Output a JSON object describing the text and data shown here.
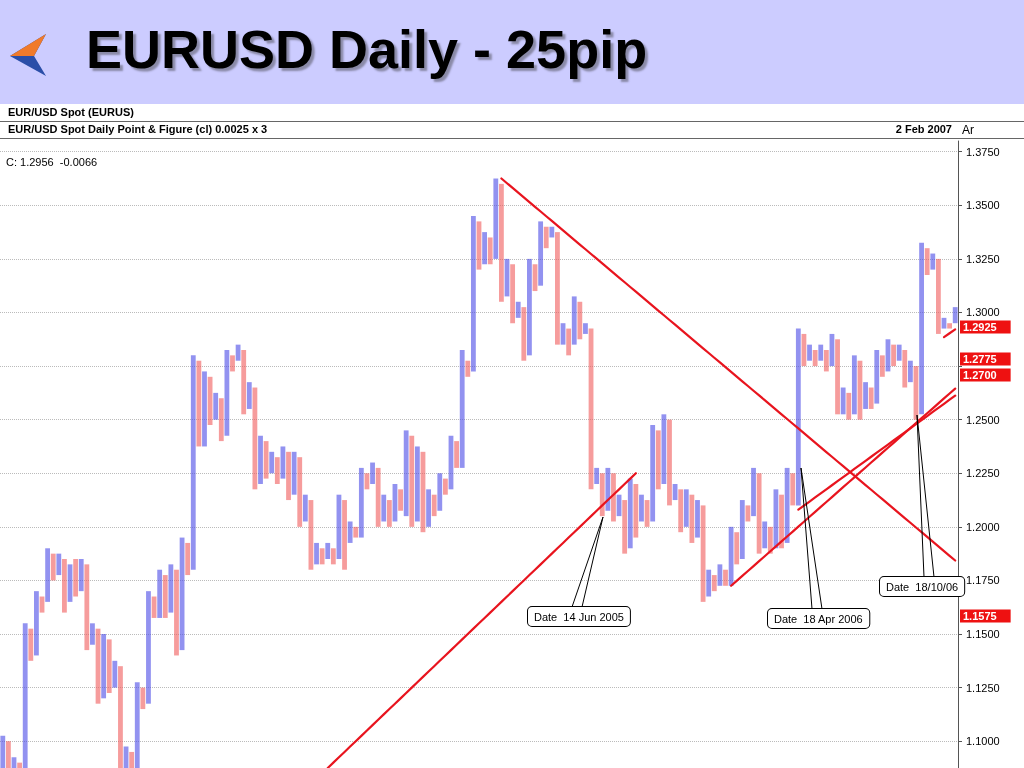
{
  "chart_data": {
    "type": "bar",
    "title": "EURUSD Daily - 25pip",
    "subtitle": "EUR/USD Spot Daily Point & Figure (cl) 0.0025 x 3",
    "categories": [
      null,
      null,
      null,
      null,
      null,
      null,
      null,
      null,
      null,
      null,
      null,
      null,
      null,
      null,
      null,
      null,
      null,
      null,
      null,
      null,
      null,
      null,
      null,
      null,
      null,
      null,
      null,
      null,
      null,
      null,
      null,
      null,
      null,
      null,
      null,
      null,
      null,
      null,
      null,
      null,
      null,
      null,
      null,
      null,
      null,
      null,
      null,
      null,
      null,
      null,
      null,
      null,
      null,
      null,
      null,
      null,
      null,
      null,
      null,
      null,
      null,
      null,
      null,
      null,
      null,
      null,
      null,
      null,
      null,
      null,
      null,
      null,
      null,
      null,
      null,
      null,
      null,
      null,
      null,
      null,
      null,
      null,
      null,
      null,
      null,
      null,
      null,
      null,
      null,
      null,
      null,
      null,
      null,
      null,
      null,
      null,
      null,
      null,
      null,
      null,
      null,
      null,
      null,
      null,
      null,
      null,
      null,
      null,
      null,
      null,
      null,
      null,
      null,
      null,
      null,
      null,
      null,
      null,
      null,
      null,
      null,
      null,
      null,
      null,
      null,
      null,
      null,
      null,
      null,
      null,
      null,
      null,
      null,
      null,
      null,
      null,
      null,
      null,
      null,
      null,
      null,
      null,
      null,
      null,
      null,
      null,
      null,
      null,
      null,
      null,
      null,
      null,
      null,
      null,
      null,
      null,
      null,
      null,
      null,
      null,
      null,
      null,
      null,
      null,
      null,
      null,
      null,
      null,
      null,
      null,
      null
    ],
    "base": [
      1.0875,
      1.0875,
      1.0875,
      1.0875,
      1.0875,
      1.1375,
      1.14,
      1.16,
      1.165,
      1.175,
      1.1775,
      1.16,
      1.165,
      1.1675,
      1.17,
      1.1425,
      1.145,
      1.1175,
      1.12,
      1.1225,
      1.125,
      1.0875,
      1.0875,
      1.0875,
      1.0875,
      1.115,
      1.1175,
      1.1575,
      1.1575,
      1.1575,
      1.16,
      1.14,
      1.1425,
      1.1775,
      1.18,
      1.2375,
      1.2375,
      1.2475,
      1.25,
      1.24,
      1.2425,
      1.2725,
      1.2775,
      1.2525,
      1.255,
      1.2175,
      1.22,
      1.2225,
      1.225,
      1.22,
      1.2225,
      1.2125,
      1.215,
      1.2,
      1.2025,
      1.18,
      1.1825,
      1.1825,
      1.185,
      1.1825,
      1.185,
      1.18,
      1.1925,
      1.195,
      1.195,
      1.2175,
      1.22,
      1.2,
      1.2025,
      1.2,
      1.2025,
      1.2075,
      1.205,
      1.2,
      1.2025,
      1.1975,
      1.2,
      1.205,
      1.2075,
      1.215,
      1.2175,
      1.2275,
      1.2275,
      1.27,
      1.2725,
      1.32,
      1.3225,
      1.3225,
      1.325,
      1.305,
      1.3075,
      1.295,
      1.2975,
      1.2775,
      1.28,
      1.31,
      1.3125,
      1.33,
      1.335,
      1.285,
      1.285,
      1.28,
      1.285,
      1.2875,
      1.29,
      1.2175,
      1.22,
      1.205,
      1.2075,
      1.2025,
      1.205,
      1.1875,
      1.19,
      1.195,
      1.2025,
      1.2,
      1.2025,
      1.2175,
      1.22,
      1.21,
      1.2125,
      1.1975,
      1.2,
      1.1925,
      1.195,
      1.165,
      1.1675,
      1.17,
      1.1725,
      1.1725,
      1.1725,
      1.1825,
      1.185,
      1.2025,
      1.205,
      1.1875,
      1.19,
      1.1875,
      1.19,
      1.19,
      1.1925,
      1.21,
      1.21,
      1.275,
      1.2775,
      1.275,
      1.2775,
      1.2725,
      1.275,
      1.2525,
      1.2525,
      1.25,
      1.2525,
      1.25,
      1.255,
      1.255,
      1.2575,
      1.27,
      1.2725,
      1.275,
      1.2775,
      1.265,
      1.2675,
      1.25,
      1.2525,
      1.3175,
      1.32,
      1.29,
      1.2925,
      1.2925,
      1.295
    ],
    "values": [
      0.015,
      0.0125,
      0.005,
      0.0025,
      0.0675,
      0.015,
      0.03,
      0.0075,
      0.025,
      0.0125,
      0.01,
      0.025,
      0.0175,
      0.0175,
      0.015,
      0.04,
      0.01,
      0.035,
      0.03,
      0.025,
      0.0125,
      0.0475,
      0.01,
      0.0075,
      0.04,
      0.01,
      0.0525,
      0.01,
      0.0225,
      0.02,
      0.0225,
      0.04,
      0.0525,
      0.015,
      0.1,
      0.04,
      0.035,
      0.0225,
      0.0125,
      0.02,
      0.04,
      0.0075,
      0.0075,
      0.03,
      0.0125,
      0.0475,
      0.0225,
      0.0175,
      0.01,
      0.0125,
      0.015,
      0.0225,
      0.02,
      0.0325,
      0.0125,
      0.0325,
      0.01,
      0.0075,
      0.0075,
      0.0075,
      0.03,
      0.0325,
      0.01,
      0.005,
      0.0325,
      0.0075,
      0.01,
      0.0275,
      0.0125,
      0.0125,
      0.0175,
      0.01,
      0.04,
      0.0425,
      0.035,
      0.0375,
      0.0175,
      0.01,
      0.0175,
      0.0075,
      0.025,
      0.0125,
      0.055,
      0.0075,
      0.0725,
      0.0225,
      0.015,
      0.0125,
      0.0375,
      0.055,
      0.0175,
      0.0275,
      0.0075,
      0.025,
      0.045,
      0.0125,
      0.03,
      0.01,
      0.005,
      0.0525,
      0.01,
      0.0125,
      0.0225,
      0.0175,
      0.005,
      0.075,
      0.0075,
      0.02,
      0.02,
      0.0225,
      0.01,
      0.025,
      0.0325,
      0.025,
      0.0125,
      0.0125,
      0.045,
      0.0275,
      0.0325,
      0.04,
      0.0075,
      0.02,
      0.0175,
      0.0225,
      0.0175,
      0.045,
      0.0125,
      0.0075,
      0.01,
      0.0075,
      0.0275,
      0.015,
      0.0275,
      0.0075,
      0.0225,
      0.0375,
      0.0125,
      0.0125,
      0.0275,
      0.025,
      0.035,
      0.015,
      0.0825,
      0.015,
      0.0075,
      0.0075,
      0.0075,
      0.01,
      0.015,
      0.035,
      0.0125,
      0.0125,
      0.0275,
      0.0275,
      0.0125,
      0.01,
      0.025,
      0.01,
      0.015,
      0.01,
      0.0075,
      0.0175,
      0.01,
      0.025,
      0.08,
      0.0125,
      0.0075,
      0.035,
      0.005,
      0.0025,
      0.0075
    ],
    "colors": [
      "#4a4ae6",
      "#f05a5a",
      "#4a4ae6",
      "#f05a5a",
      "#4a4ae6",
      "#f05a5a",
      "#4a4ae6",
      "#f05a5a",
      "#4a4ae6",
      "#f05a5a",
      "#4a4ae6",
      "#f05a5a",
      "#4a4ae6",
      "#f05a5a",
      "#4a4ae6",
      "#f05a5a",
      "#4a4ae6",
      "#f05a5a",
      "#4a4ae6",
      "#f05a5a",
      "#4a4ae6",
      "#f05a5a",
      "#4a4ae6",
      "#f05a5a",
      "#4a4ae6",
      "#f05a5a",
      "#4a4ae6",
      "#f05a5a",
      "#4a4ae6",
      "#f05a5a",
      "#4a4ae6",
      "#f05a5a",
      "#4a4ae6",
      "#f05a5a",
      "#4a4ae6",
      "#f05a5a",
      "#4a4ae6",
      "#f05a5a",
      "#4a4ae6",
      "#f05a5a",
      "#4a4ae6",
      "#f05a5a",
      "#4a4ae6",
      "#f05a5a",
      "#4a4ae6",
      "#f05a5a",
      "#4a4ae6",
      "#f05a5a",
      "#4a4ae6",
      "#f05a5a",
      "#4a4ae6",
      "#f05a5a",
      "#4a4ae6",
      "#f05a5a",
      "#4a4ae6",
      "#f05a5a",
      "#4a4ae6",
      "#f05a5a",
      "#4a4ae6",
      "#f05a5a",
      "#4a4ae6",
      "#f05a5a",
      "#4a4ae6",
      "#f05a5a",
      "#4a4ae6",
      "#f05a5a",
      "#4a4ae6",
      "#f05a5a",
      "#4a4ae6",
      "#f05a5a",
      "#4a4ae6",
      "#f05a5a",
      "#4a4ae6",
      "#f05a5a",
      "#4a4ae6",
      "#f05a5a",
      "#4a4ae6",
      "#f05a5a",
      "#4a4ae6",
      "#f05a5a",
      "#4a4ae6",
      "#f05a5a",
      "#4a4ae6",
      "#f05a5a",
      "#4a4ae6",
      "#f05a5a",
      "#4a4ae6",
      "#f05a5a",
      "#4a4ae6",
      "#f05a5a",
      "#4a4ae6",
      "#f05a5a",
      "#4a4ae6",
      "#f05a5a",
      "#4a4ae6",
      "#f05a5a",
      "#4a4ae6",
      "#f05a5a",
      "#4a4ae6",
      "#f05a5a",
      "#4a4ae6",
      "#f05a5a",
      "#4a4ae6",
      "#f05a5a",
      "#4a4ae6",
      "#f05a5a",
      "#4a4ae6",
      "#f05a5a",
      "#4a4ae6",
      "#f05a5a",
      "#4a4ae6",
      "#f05a5a",
      "#4a4ae6",
      "#f05a5a",
      "#4a4ae6",
      "#f05a5a",
      "#4a4ae6",
      "#f05a5a",
      "#4a4ae6",
      "#f05a5a",
      "#4a4ae6",
      "#f05a5a",
      "#4a4ae6",
      "#f05a5a",
      "#4a4ae6",
      "#f05a5a",
      "#4a4ae6",
      "#f05a5a",
      "#4a4ae6",
      "#f05a5a",
      "#4a4ae6",
      "#f05a5a",
      "#4a4ae6",
      "#f05a5a",
      "#4a4ae6",
      "#f05a5a",
      "#4a4ae6",
      "#f05a5a",
      "#4a4ae6",
      "#f05a5a",
      "#4a4ae6",
      "#f05a5a",
      "#4a4ae6",
      "#f05a5a",
      "#4a4ae6",
      "#f05a5a",
      "#4a4ae6",
      "#f05a5a",
      "#4a4ae6",
      "#f05a5a",
      "#4a4ae6",
      "#f05a5a",
      "#4a4ae6",
      "#f05a5a",
      "#4a4ae6",
      "#f05a5a",
      "#4a4ae6",
      "#f05a5a",
      "#4a4ae6",
      "#f05a5a",
      "#4a4ae6",
      "#f05a5a",
      "#4a4ae6",
      "#f05a5a",
      "#4a4ae6",
      "#f05a5a",
      "#4a4ae6",
      "#f05a5a",
      "#4a4ae6",
      "#f05a5a",
      "#4a4ae6"
    ],
    "ylim": [
      1.0875,
      1.38
    ],
    "yticks": [
      {
        "value": 1.1,
        "label": "1.1000"
      },
      {
        "value": 1.125,
        "label": "1.1250"
      },
      {
        "value": 1.15,
        "label": "1.1500"
      },
      {
        "value": 1.175,
        "label": "1.1750"
      },
      {
        "value": 1.2,
        "label": "1.2000"
      },
      {
        "value": 1.225,
        "label": "1.2250"
      },
      {
        "value": 1.25,
        "label": "1.2500"
      },
      {
        "value": 1.275,
        "label": null
      },
      {
        "value": 1.3,
        "label": "1.3000"
      },
      {
        "value": 1.325,
        "label": "1.3250"
      },
      {
        "value": 1.35,
        "label": "1.3500"
      },
      {
        "value": 1.375,
        "label": "1.3750"
      }
    ],
    "tick_labels": "y",
    "grid": "y",
    "series": [
      {
        "type": "line",
        "color": "#e8141e",
        "values": [
          null,
          null,
          null,
          null,
          null,
          null,
          null,
          null,
          null,
          null,
          null,
          null,
          null,
          null,
          null,
          null,
          null,
          null,
          null,
          null,
          null,
          null,
          null,
          null,
          null,
          null,
          null,
          null,
          null,
          null,
          null,
          null,
          null,
          null,
          null,
          null,
          null,
          null,
          null,
          null,
          null,
          null,
          null,
          null,
          null,
          null,
          null,
          null,
          null,
          null,
          null,
          null,
          null,
          null,
          null,
          null,
          null,
          null,
          null,
          null,
          null,
          null,
          null,
          null,
          null,
          null,
          null,
          null,
          null,
          null,
          null,
          null,
          null,
          null,
          null,
          null,
          null,
          null,
          null,
          null,
          null,
          null,
          null,
          null,
          null,
          null,
          null,
          null,
          null,
          1.3625,
          1.3603,
          1.3581,
          1.3559,
          1.3537,
          1.3515,
          1.3493,
          1.3471,
          1.3449,
          1.3427,
          1.3405,
          1.3383,
          1.3361,
          1.3339,
          1.3317,
          1.3295,
          1.3273,
          1.3251,
          1.3229,
          1.3207,
          1.3185,
          1.3163,
          1.3141,
          1.3119,
          1.3097,
          1.3075,
          1.3053,
          1.3031,
          1.3009,
          1.2987,
          1.2965,
          1.2943,
          1.2921,
          1.2899,
          1.2877,
          1.2855,
          1.2833,
          1.2811,
          1.2789,
          1.2767,
          1.2745,
          1.2723,
          1.2701,
          1.2679,
          1.2657,
          1.2635,
          1.2613,
          1.2591,
          1.2569,
          1.2547,
          1.2525,
          1.2503,
          1.2481,
          1.2459,
          1.2437,
          1.2415,
          1.2393,
          1.2371,
          1.2349,
          1.2327,
          1.2305,
          1.2283,
          1.2261,
          1.2239,
          1.2217,
          1.2195,
          1.2173,
          1.2151,
          1.2129,
          1.2107,
          1.2085,
          1.2063,
          1.2041,
          1.2019,
          1.1997,
          1.1975,
          1.1953,
          1.1931,
          1.1909,
          1.1887,
          1.1865,
          1.1843
        ]
      },
      {
        "type": "line",
        "color": "#e8141e",
        "values": [
          null,
          null,
          null,
          null,
          null,
          null,
          null,
          null,
          null,
          null,
          null,
          null,
          null,
          null,
          null,
          null,
          null,
          null,
          null,
          null,
          null,
          null,
          null,
          null,
          null,
          null,
          null,
          null,
          null,
          null,
          null,
          null,
          null,
          null,
          null,
          null,
          null,
          null,
          null,
          null,
          null,
          null,
          null,
          null,
          null,
          null,
          null,
          null,
          null,
          null,
          null,
          null,
          null,
          null,
          null,
          null,
          null,
          null,
          1.0875,
          1.09,
          1.0925,
          1.095,
          1.0975,
          1.1,
          1.1025,
          1.105,
          1.1075,
          1.11,
          1.1125,
          1.115,
          1.1175,
          1.12,
          1.1225,
          1.125,
          1.1275,
          1.13,
          1.1325,
          1.135,
          1.1375,
          1.14,
          1.1425,
          1.145,
          1.1475,
          1.15,
          1.1525,
          1.155,
          1.1575,
          1.16,
          1.1625,
          1.165,
          1.1675,
          1.17,
          1.1725,
          1.175,
          1.1775,
          1.18,
          1.1825,
          1.185,
          1.1875,
          1.19,
          1.1925,
          1.195,
          1.1975,
          1.2,
          1.2025,
          1.205,
          1.2075,
          1.21,
          1.2125,
          1.215,
          1.2175,
          1.22,
          1.2225,
          1.225,
          null,
          null,
          null,
          null,
          null,
          null,
          null,
          null,
          null,
          null,
          null,
          null,
          null,
          null,
          null,
          null,
          null,
          null,
          null,
          null,
          null,
          null,
          null,
          null,
          null,
          null,
          null,
          null,
          null,
          null,
          null,
          null,
          null,
          null,
          null,
          null,
          null,
          null,
          null,
          null,
          null,
          null,
          null,
          null,
          null,
          null,
          null,
          null,
          null,
          null,
          null,
          null,
          null,
          null,
          null,
          null,
          null
        ]
      },
      {
        "type": "line",
        "color": "#e8141e",
        "values": [
          null,
          null,
          null,
          null,
          null,
          null,
          null,
          null,
          null,
          null,
          null,
          null,
          null,
          null,
          null,
          null,
          null,
          null,
          null,
          null,
          null,
          null,
          null,
          null,
          null,
          null,
          null,
          null,
          null,
          null,
          null,
          null,
          null,
          null,
          null,
          null,
          null,
          null,
          null,
          null,
          null,
          null,
          null,
          null,
          null,
          null,
          null,
          null,
          null,
          null,
          null,
          null,
          null,
          null,
          null,
          null,
          null,
          null,
          null,
          null,
          null,
          null,
          null,
          null,
          null,
          null,
          null,
          null,
          null,
          null,
          null,
          null,
          null,
          null,
          null,
          null,
          null,
          null,
          null,
          null,
          null,
          null,
          null,
          null,
          null,
          null,
          null,
          null,
          null,
          null,
          null,
          null,
          null,
          null,
          null,
          null,
          null,
          null,
          null,
          null,
          null,
          null,
          null,
          null,
          null,
          null,
          null,
          null,
          null,
          null,
          null,
          null,
          null,
          null,
          null,
          null,
          null,
          null,
          null,
          null,
          null,
          null,
          null,
          null,
          null,
          null,
          null,
          null,
          null,
          null,
          1.1725,
          1.1748,
          1.1771,
          1.1794,
          1.1817,
          1.184,
          1.1863,
          1.1886,
          1.1909,
          1.1932,
          1.1955,
          1.1978,
          1.2001,
          1.2024,
          1.2047,
          1.207,
          1.2093,
          1.2116,
          1.2139,
          1.2162,
          1.2185,
          1.2208,
          1.2231,
          1.2254,
          1.2277,
          1.23,
          1.2323,
          1.2346,
          1.2369,
          1.2392,
          1.2415,
          1.2438,
          1.2461,
          1.2484,
          1.2507,
          1.253,
          1.2553,
          1.2576,
          1.2599,
          1.2622,
          1.2645
        ]
      },
      {
        "type": "line",
        "color": "#e8141e",
        "values": [
          null,
          null,
          null,
          null,
          null,
          null,
          null,
          null,
          null,
          null,
          null,
          null,
          null,
          null,
          null,
          null,
          null,
          null,
          null,
          null,
          null,
          null,
          null,
          null,
          null,
          null,
          null,
          null,
          null,
          null,
          null,
          null,
          null,
          null,
          null,
          null,
          null,
          null,
          null,
          null,
          null,
          null,
          null,
          null,
          null,
          null,
          null,
          null,
          null,
          null,
          null,
          null,
          null,
          null,
          null,
          null,
          null,
          null,
          null,
          null,
          null,
          null,
          null,
          null,
          null,
          null,
          null,
          null,
          null,
          null,
          null,
          null,
          null,
          null,
          null,
          null,
          null,
          null,
          null,
          null,
          null,
          null,
          null,
          null,
          null,
          null,
          null,
          null,
          null,
          null,
          null,
          null,
          null,
          null,
          null,
          null,
          null,
          null,
          null,
          null,
          null,
          null,
          null,
          null,
          null,
          null,
          null,
          null,
          null,
          null,
          null,
          null,
          null,
          null,
          null,
          null,
          null,
          null,
          null,
          null,
          null,
          null,
          null,
          null,
          null,
          null,
          null,
          null,
          null,
          null,
          null,
          null,
          null,
          null,
          null,
          null,
          null,
          null,
          null,
          null,
          null,
          null,
          1.208,
          1.2099,
          1.2118,
          1.2137,
          1.2156,
          1.2175,
          1.2194,
          1.2213,
          1.2232,
          1.2251,
          1.227,
          1.2289,
          1.2308,
          1.2327,
          1.2346,
          1.2365,
          1.2384,
          1.2403,
          1.2422,
          1.2441,
          1.246,
          1.2479,
          1.2498,
          1.2517,
          1.2536,
          1.2555,
          1.2574,
          1.2593,
          1.2612
        ]
      },
      {
        "type": "line",
        "color": "#e8141e",
        "values": [
          null,
          null,
          null,
          null,
          null,
          null,
          null,
          null,
          null,
          null,
          null,
          null,
          null,
          null,
          null,
          null,
          null,
          null,
          null,
          null,
          null,
          null,
          null,
          null,
          null,
          null,
          null,
          null,
          null,
          null,
          null,
          null,
          null,
          null,
          null,
          null,
          null,
          null,
          null,
          null,
          null,
          null,
          null,
          null,
          null,
          null,
          null,
          null,
          null,
          null,
          null,
          null,
          null,
          null,
          null,
          null,
          null,
          null,
          null,
          null,
          null,
          null,
          null,
          null,
          null,
          null,
          null,
          null,
          null,
          null,
          null,
          null,
          null,
          null,
          null,
          null,
          null,
          null,
          null,
          null,
          null,
          null,
          null,
          null,
          null,
          null,
          null,
          null,
          null,
          null,
          null,
          null,
          null,
          null,
          null,
          null,
          null,
          null,
          null,
          null,
          null,
          null,
          null,
          null,
          null,
          null,
          null,
          null,
          null,
          null,
          null,
          null,
          null,
          null,
          null,
          null,
          null,
          null,
          null,
          null,
          null,
          null,
          null,
          null,
          null,
          null,
          null,
          null,
          null,
          null,
          null,
          null,
          null,
          null,
          null,
          null,
          null,
          null,
          null,
          null,
          null,
          null,
          null,
          null,
          null,
          null,
          null,
          null,
          null,
          null,
          null,
          null,
          null,
          null,
          null,
          null,
          null,
          null,
          null,
          null,
          null,
          null,
          null,
          null,
          null,
          null,
          null,
          null,
          1.2885,
          1.2903,
          1.2921
        ]
      }
    ],
    "annotations": [
      "EUR/USD Spot (EURUS)",
      "2 Feb 2007",
      "C: 1.2956  -0.0066",
      "Ar",
      "Date  14 Jun 2005",
      "Date  18 Apr 2006",
      "Date  18/10/06",
      "1.2925",
      "1.2775",
      "1.2700",
      "1.1575"
    ]
  }
}
